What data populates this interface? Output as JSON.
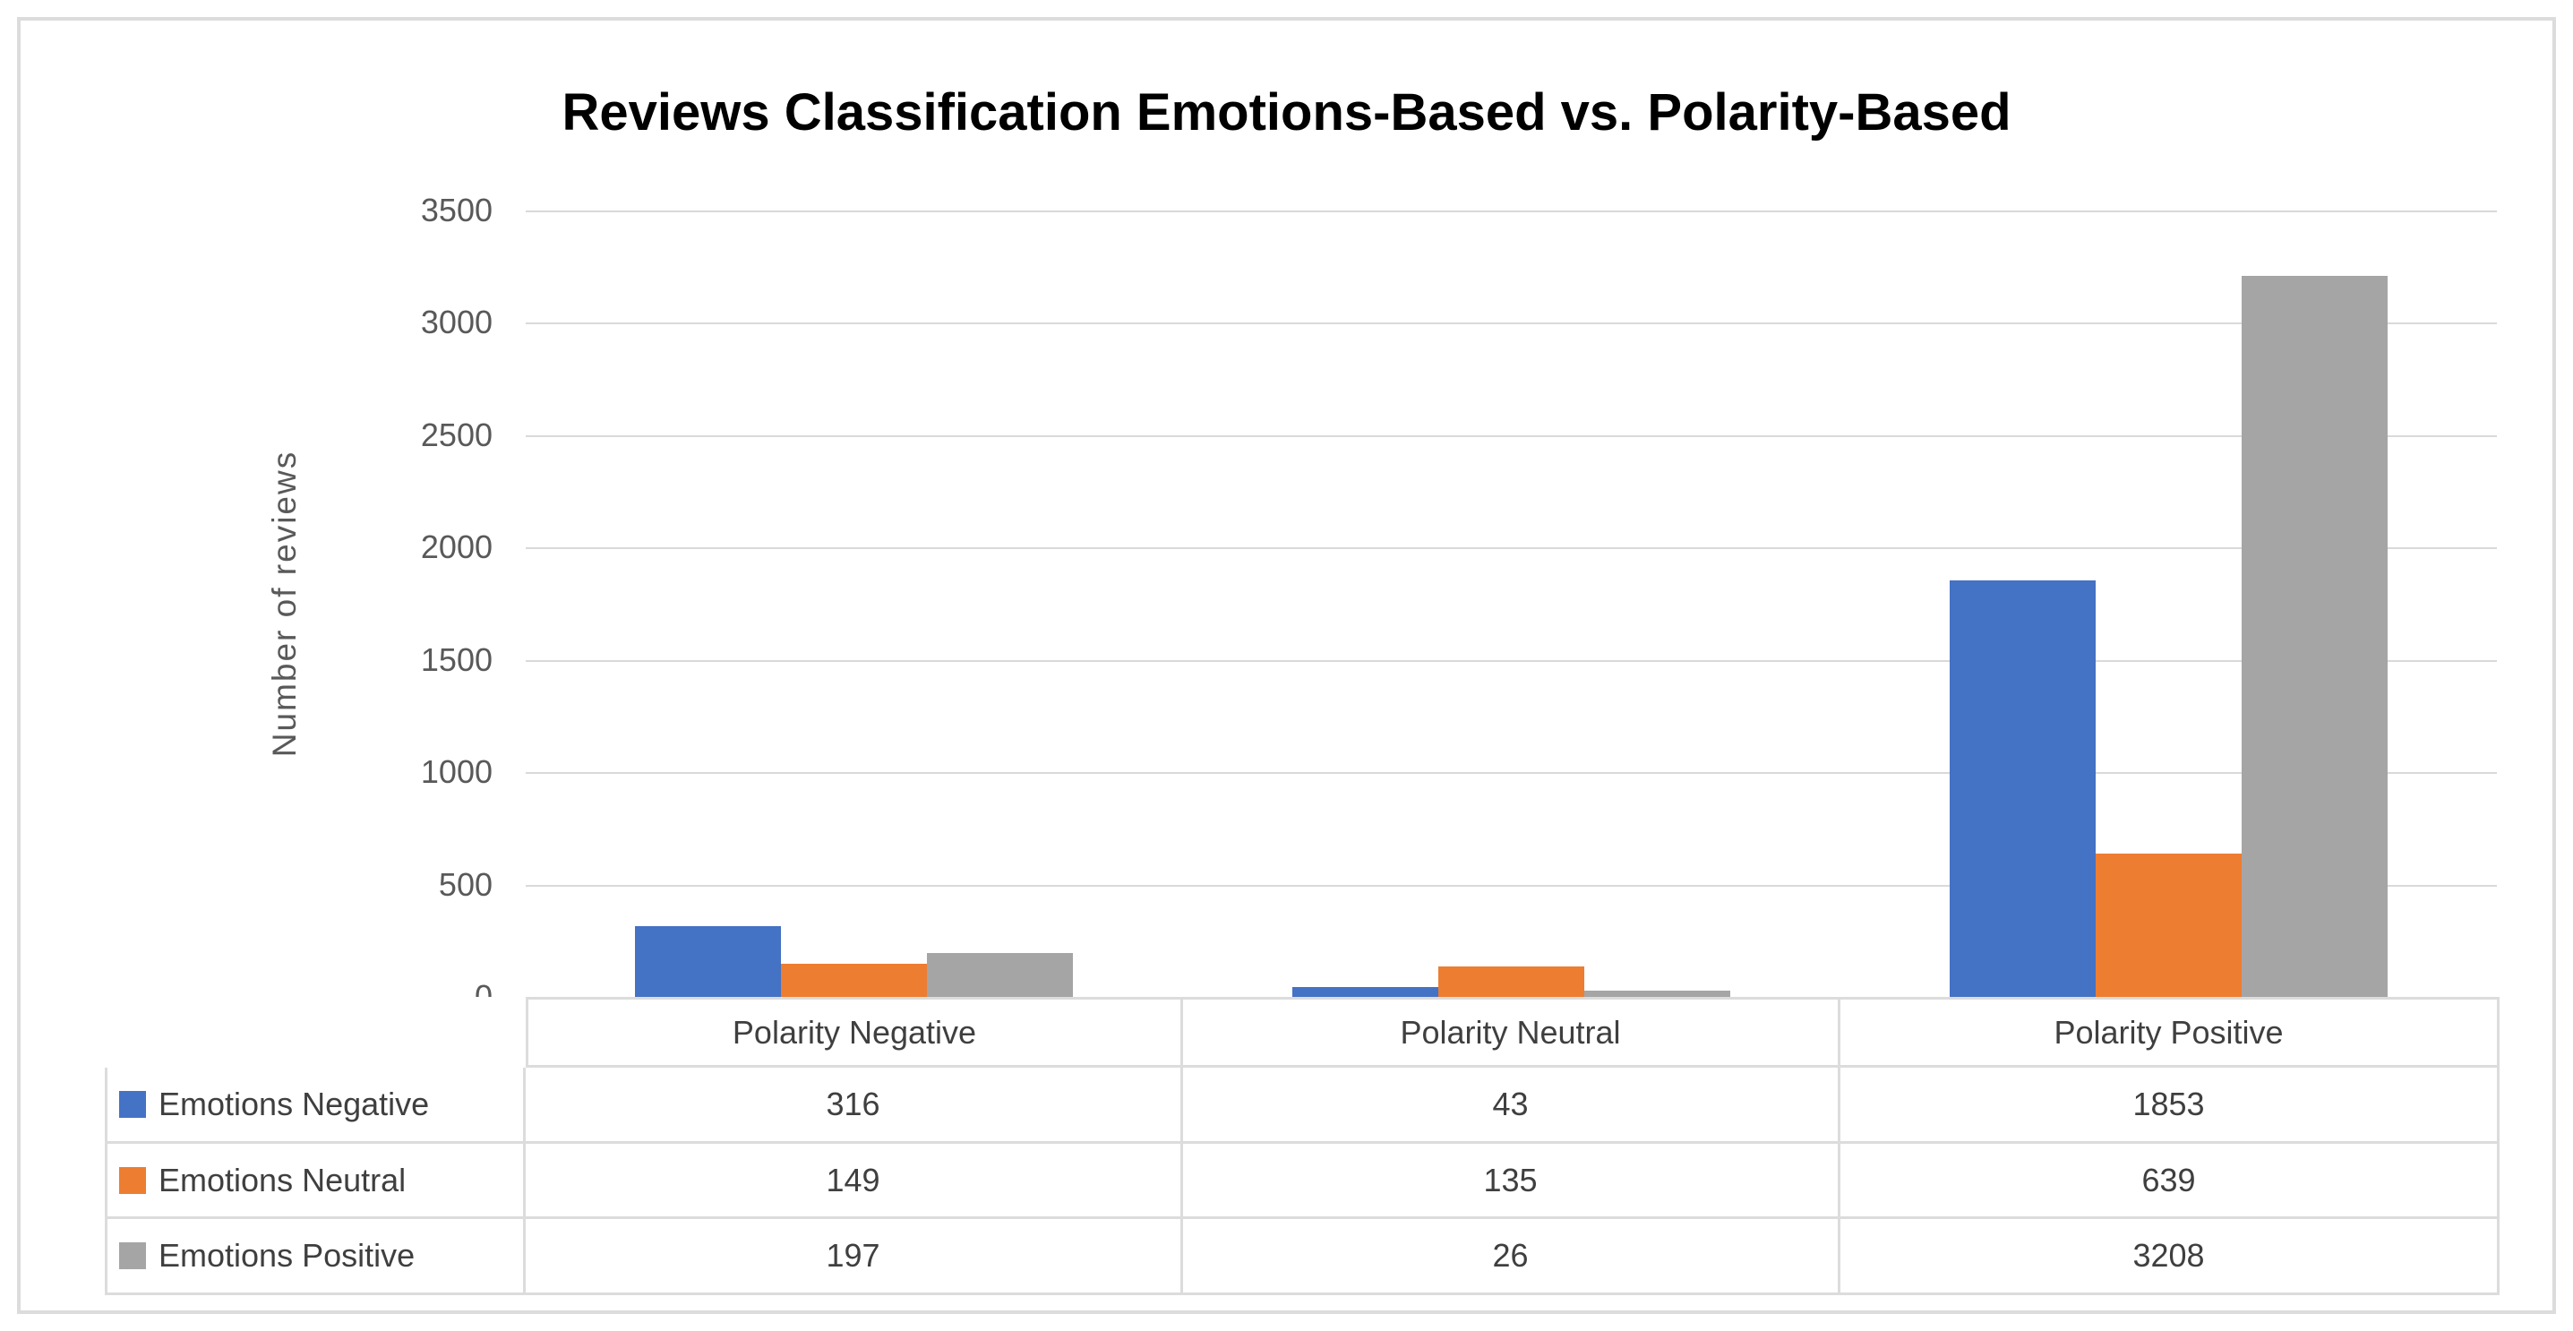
{
  "chart": {
    "title": "Reviews Classification Emotions-Based vs. Polarity-Based",
    "ylabel": "Number of reviews"
  },
  "chart_data": {
    "type": "bar",
    "title": "Reviews Classification Emotions-Based vs. Polarity-Based",
    "xlabel": "",
    "ylabel": "Number of reviews",
    "categories": [
      "Polarity Negative",
      "Polarity Neutral",
      "Polarity Positive"
    ],
    "series": [
      {
        "name": "Emotions Negative",
        "color": "#4472C4",
        "values": [
          316,
          43,
          1853
        ]
      },
      {
        "name": "Emotions Neutral",
        "color": "#ED7D31",
        "values": [
          149,
          135,
          639
        ]
      },
      {
        "name": "Emotions Positive",
        "color": "#A5A5A5",
        "values": [
          197,
          26,
          3208
        ]
      }
    ],
    "ylim": [
      0,
      3500
    ],
    "yticks": [
      0,
      500,
      1000,
      1500,
      2000,
      2500,
      3000,
      3500
    ],
    "grid": true,
    "legend_position": "data-table-left",
    "data_table_shown": true
  },
  "colors": {
    "grid": "#d9d9d9",
    "table_border": "#dcdcdc",
    "frame_border": "#dcdcdc",
    "axis_text": "#595959",
    "table_text": "#3f3f3f",
    "title_text": "#000000"
  }
}
